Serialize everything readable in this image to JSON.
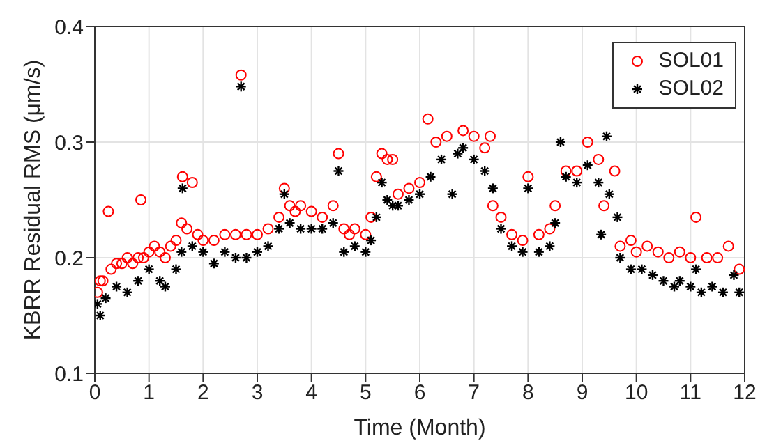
{
  "chart_data": {
    "type": "scatter",
    "xlabel": "Time (Month)",
    "ylabel": "KBRR Residual RMS (μm/s)",
    "xlim": [
      0,
      12
    ],
    "xticks": [
      0,
      1,
      2,
      3,
      4,
      5,
      6,
      7,
      8,
      9,
      10,
      11,
      12
    ],
    "ylim": [
      0.1,
      0.4
    ],
    "yticks": [
      0.1,
      0.2,
      0.3,
      0.4
    ],
    "grid": true,
    "legend": "top right",
    "series": [
      {
        "name": "SOL01",
        "color": "#ff0000",
        "marker": "circle",
        "x": [
          0.05,
          0.1,
          0.15,
          0.25,
          0.3,
          0.4,
          0.5,
          0.6,
          0.7,
          0.8,
          0.85,
          0.9,
          1.0,
          1.1,
          1.2,
          1.3,
          1.4,
          1.5,
          1.6,
          1.62,
          1.7,
          1.8,
          1.9,
          2.0,
          2.2,
          2.4,
          2.6,
          2.7,
          2.8,
          3.0,
          3.2,
          3.4,
          3.5,
          3.6,
          3.7,
          3.8,
          4.0,
          4.2,
          4.4,
          4.5,
          4.6,
          4.7,
          4.8,
          5.0,
          5.1,
          5.2,
          5.3,
          5.4,
          5.5,
          5.6,
          5.8,
          6.0,
          6.15,
          6.3,
          6.5,
          6.8,
          7.0,
          7.2,
          7.3,
          7.35,
          7.5,
          7.7,
          7.9,
          8.0,
          8.2,
          8.4,
          8.5,
          8.7,
          8.9,
          9.1,
          9.3,
          9.4,
          9.6,
          9.7,
          9.9,
          10.0,
          10.2,
          10.4,
          10.6,
          10.8,
          11.0,
          11.1,
          11.3,
          11.5,
          11.7,
          11.9
        ],
        "values": [
          0.17,
          0.18,
          0.18,
          0.24,
          0.19,
          0.195,
          0.195,
          0.2,
          0.195,
          0.2,
          0.25,
          0.2,
          0.205,
          0.21,
          0.205,
          0.2,
          0.21,
          0.215,
          0.23,
          0.27,
          0.225,
          0.265,
          0.22,
          0.215,
          0.215,
          0.22,
          0.22,
          0.358,
          0.22,
          0.22,
          0.225,
          0.235,
          0.26,
          0.245,
          0.24,
          0.245,
          0.24,
          0.235,
          0.245,
          0.29,
          0.225,
          0.22,
          0.225,
          0.22,
          0.235,
          0.27,
          0.29,
          0.285,
          0.285,
          0.255,
          0.26,
          0.265,
          0.32,
          0.3,
          0.305,
          0.31,
          0.305,
          0.295,
          0.305,
          0.245,
          0.235,
          0.22,
          0.215,
          0.27,
          0.22,
          0.225,
          0.245,
          0.275,
          0.275,
          0.3,
          0.285,
          0.245,
          0.275,
          0.21,
          0.215,
          0.205,
          0.21,
          0.205,
          0.2,
          0.205,
          0.2,
          0.235,
          0.2,
          0.2,
          0.21,
          0.19
        ]
      },
      {
        "name": "SOL02",
        "color": "#000000",
        "marker": "cross",
        "x": [
          0.05,
          0.1,
          0.2,
          0.4,
          0.6,
          0.8,
          1.0,
          1.2,
          1.3,
          1.5,
          1.6,
          1.62,
          1.8,
          2.0,
          2.2,
          2.4,
          2.6,
          2.7,
          2.8,
          3.0,
          3.2,
          3.4,
          3.5,
          3.6,
          3.8,
          4.0,
          4.2,
          4.4,
          4.5,
          4.6,
          4.8,
          5.0,
          5.1,
          5.2,
          5.3,
          5.4,
          5.5,
          5.6,
          5.8,
          6.0,
          6.2,
          6.4,
          6.6,
          6.7,
          6.8,
          7.0,
          7.2,
          7.35,
          7.5,
          7.7,
          7.9,
          8.0,
          8.2,
          8.4,
          8.5,
          8.6,
          8.7,
          8.9,
          9.1,
          9.3,
          9.35,
          9.45,
          9.5,
          9.65,
          9.7,
          9.9,
          10.1,
          10.3,
          10.5,
          10.7,
          10.8,
          11.0,
          11.1,
          11.2,
          11.4,
          11.6,
          11.8,
          11.9
        ],
        "values": [
          0.16,
          0.15,
          0.165,
          0.175,
          0.17,
          0.18,
          0.19,
          0.18,
          0.175,
          0.19,
          0.205,
          0.26,
          0.21,
          0.205,
          0.195,
          0.205,
          0.2,
          0.348,
          0.2,
          0.205,
          0.21,
          0.225,
          0.255,
          0.23,
          0.225,
          0.225,
          0.225,
          0.23,
          0.275,
          0.205,
          0.21,
          0.205,
          0.215,
          0.235,
          0.265,
          0.25,
          0.245,
          0.245,
          0.25,
          0.255,
          0.27,
          0.285,
          0.255,
          0.29,
          0.295,
          0.285,
          0.275,
          0.26,
          0.225,
          0.21,
          0.205,
          0.26,
          0.205,
          0.21,
          0.23,
          0.3,
          0.27,
          0.265,
          0.28,
          0.265,
          0.22,
          0.305,
          0.255,
          0.235,
          0.2,
          0.19,
          0.19,
          0.185,
          0.18,
          0.175,
          0.18,
          0.175,
          0.19,
          0.17,
          0.175,
          0.17,
          0.185,
          0.17
        ]
      }
    ]
  }
}
